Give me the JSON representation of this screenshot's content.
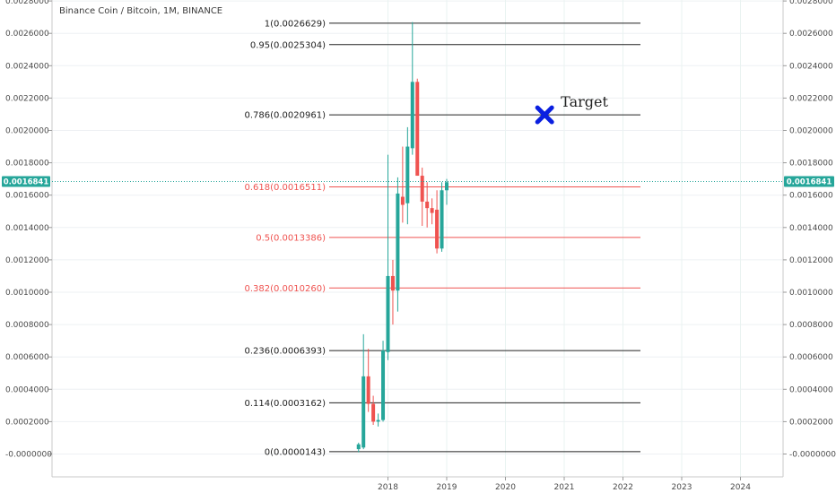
{
  "chart_data": {
    "type": "candlestick",
    "title": "Binance Coin / Bitcoin, 1M, BINANCE",
    "x_tick_labels": [
      "2018",
      "2019",
      "2020",
      "2021",
      "2022",
      "2023",
      "2024"
    ],
    "y_tick_labels": [
      "0.0028000",
      "0.0026000",
      "0.0024000",
      "0.0022000",
      "0.0020000",
      "0.0018000",
      "0.0016000",
      "0.0014000",
      "0.0012000",
      "0.0010000",
      "0.0008000",
      "0.0006000",
      "0.0004000",
      "0.0002000",
      "-0.0000000"
    ],
    "ylim": [
      -0.0001,
      0.0028
    ],
    "current_price": {
      "label": "0.0016841",
      "value": 0.0016841,
      "color": "#26a69a"
    },
    "fib_levels": [
      {
        "label": "1(0.0026629)",
        "value": 0.0026629,
        "color": "#222222"
      },
      {
        "label": "0.95(0.0025304)",
        "value": 0.0025304,
        "color": "#222222"
      },
      {
        "label": "0.786(0.0020961)",
        "value": 0.0020961,
        "color": "#222222"
      },
      {
        "label": "0.618(0.0016511)",
        "value": 0.0016511,
        "color": "#ef5350"
      },
      {
        "label": "0.5(0.0013386)",
        "value": 0.0013386,
        "color": "#ef5350"
      },
      {
        "label": "0.382(0.0010260)",
        "value": 0.001026,
        "color": "#ef5350"
      },
      {
        "label": "0.236(0.0006393)",
        "value": 0.0006393,
        "color": "#222222"
      },
      {
        "label": "0.114(0.0003162)",
        "value": 0.0003162,
        "color": "#222222"
      },
      {
        "label": "0(0.0000143)",
        "value": 1.43e-05,
        "color": "#222222"
      }
    ],
    "candles": [
      {
        "date": "2017-07",
        "open": 3e-05,
        "high": 7e-05,
        "low": 1e-05,
        "close": 6e-05
      },
      {
        "date": "2017-08",
        "open": 4e-05,
        "high": 0.00074,
        "low": 3e-05,
        "close": 0.00048
      },
      {
        "date": "2017-09",
        "open": 0.00048,
        "high": 0.00065,
        "low": 0.00026,
        "close": 0.00031
      },
      {
        "date": "2017-10",
        "open": 0.00031,
        "high": 0.00036,
        "low": 0.00018,
        "close": 0.0002
      },
      {
        "date": "2017-11",
        "open": 0.0002,
        "high": 0.00025,
        "low": 0.00017,
        "close": 0.00021
      },
      {
        "date": "2017-12",
        "open": 0.00021,
        "high": 0.0007,
        "low": 0.0002,
        "close": 0.00064
      },
      {
        "date": "2018-01",
        "open": 0.00063,
        "high": 0.00185,
        "low": 0.00058,
        "close": 0.0011
      },
      {
        "date": "2018-02",
        "open": 0.0011,
        "high": 0.0012,
        "low": 0.0008,
        "close": 0.00101
      },
      {
        "date": "2018-03",
        "open": 0.00101,
        "high": 0.00171,
        "low": 0.00088,
        "close": 0.00161
      },
      {
        "date": "2018-04",
        "open": 0.00159,
        "high": 0.0019,
        "low": 0.00143,
        "close": 0.00154
      },
      {
        "date": "2018-05",
        "open": 0.00155,
        "high": 0.00202,
        "low": 0.00142,
        "close": 0.0019
      },
      {
        "date": "2018-06",
        "open": 0.00189,
        "high": 0.00267,
        "low": 0.00185,
        "close": 0.0023
      },
      {
        "date": "2018-07",
        "open": 0.0023,
        "high": 0.00232,
        "low": 0.00172,
        "close": 0.00172
      },
      {
        "date": "2018-08",
        "open": 0.00172,
        "high": 0.00177,
        "low": 0.00141,
        "close": 0.00156
      },
      {
        "date": "2018-09",
        "open": 0.00156,
        "high": 0.00168,
        "low": 0.0014,
        "close": 0.00152
      },
      {
        "date": "2018-10",
        "open": 0.00152,
        "high": 0.00158,
        "low": 0.00142,
        "close": 0.00149
      },
      {
        "date": "2018-11",
        "open": 0.00151,
        "high": 0.00163,
        "low": 0.00124,
        "close": 0.00127
      },
      {
        "date": "2018-12",
        "open": 0.00127,
        "high": 0.00168,
        "low": 0.00125,
        "close": 0.00163
      },
      {
        "date": "2019-01",
        "open": 0.00163,
        "high": 0.0017,
        "low": 0.00154,
        "close": 0.00168
      }
    ],
    "annotation": {
      "text": "Target",
      "marker": "x-mark-icon",
      "marker_color": "#0a1fe0",
      "date": "2020-09",
      "value": 0.0020961
    },
    "bull_color": "#26a69a",
    "bear_color": "#ef5350",
    "grid": true
  }
}
